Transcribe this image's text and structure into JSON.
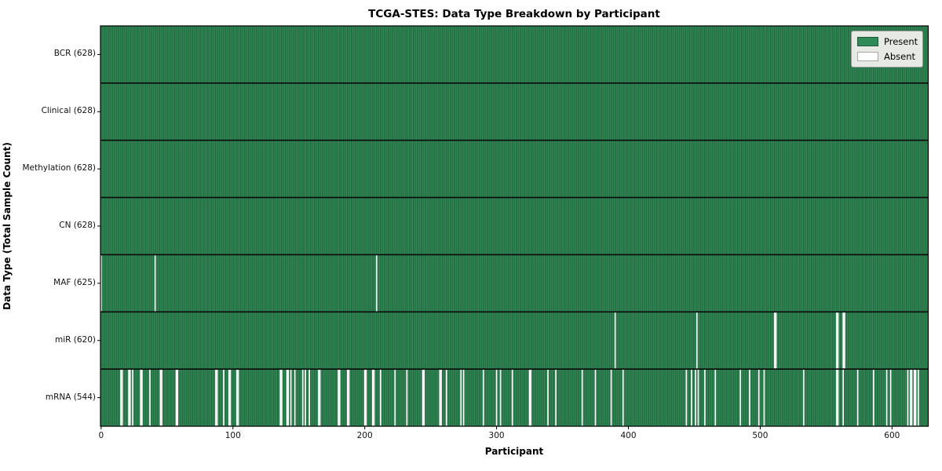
{
  "chart_data": {
    "type": "heatmap",
    "title": "TCGA-STES: Data Type Breakdown by Participant",
    "xlabel": "Participant",
    "ylabel": "Data Type (Total Sample Count)",
    "x_ticks": [
      0,
      100,
      200,
      300,
      400,
      500,
      600
    ],
    "xlim": [
      -0.5,
      627.5
    ],
    "n_participants": 628,
    "grid": false,
    "legend_position": "upper right",
    "legend": [
      {
        "label": "Present",
        "color": "#2e8b57"
      },
      {
        "label": "Absent",
        "color": "#ffffff"
      }
    ],
    "colors": {
      "present": "#339059",
      "present_edge": "#1b5233",
      "absent": "#ffffff",
      "row_separator": "#0a0a0a",
      "axis": "#000000",
      "legend_bg": "#e7eae4"
    },
    "rows": [
      {
        "label": "BCR (628)",
        "data_type": "BCR",
        "present_count": 628,
        "absent_participants": []
      },
      {
        "label": "Clinical (628)",
        "data_type": "Clinical",
        "present_count": 628,
        "absent_participants": []
      },
      {
        "label": "Methylation (628)",
        "data_type": "Methylation",
        "present_count": 628,
        "absent_participants": []
      },
      {
        "label": "CN (628)",
        "data_type": "CN",
        "present_count": 628,
        "absent_participants": []
      },
      {
        "label": "MAF (625)",
        "data_type": "MAF",
        "present_count": 625,
        "absent_participants": [
          0,
          41,
          209
        ]
      },
      {
        "label": "miR (620)",
        "data_type": "miR",
        "present_count": 620,
        "absent_participants": [
          390,
          452,
          511,
          512,
          558,
          559,
          563,
          564
        ]
      },
      {
        "label": "mRNA (544)",
        "data_type": "mRNA",
        "present_count": 544,
        "absent_participants": [
          15,
          16,
          21,
          22,
          24,
          30,
          31,
          37,
          45,
          46,
          57,
          58,
          87,
          88,
          93,
          97,
          98,
          103,
          104,
          136,
          137,
          141,
          142,
          144,
          147,
          153,
          155,
          158,
          165,
          166,
          180,
          181,
          187,
          188,
          200,
          201,
          206,
          207,
          212,
          223,
          232,
          244,
          245,
          257,
          258,
          262,
          273,
          275,
          290,
          300,
          303,
          312,
          325,
          326,
          339,
          345,
          365,
          375,
          387,
          396,
          444,
          448,
          451,
          453,
          458,
          466,
          485,
          492,
          499,
          503,
          533,
          558,
          559,
          563,
          574,
          586,
          596,
          599,
          612,
          614,
          615,
          617,
          618,
          620
        ]
      }
    ]
  }
}
